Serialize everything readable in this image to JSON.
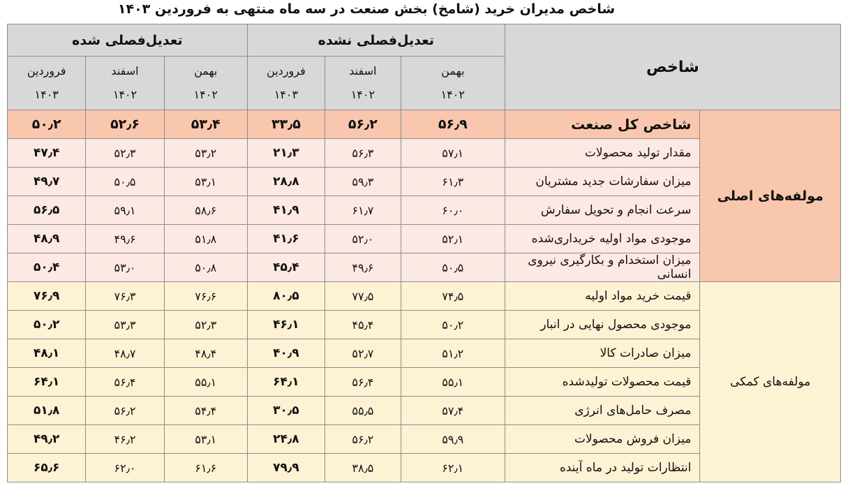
{
  "title": "شاخص مدیران خرید (شامخ) بخش صنعت در سه ماه منتهی به فروردین ۱۴۰۳",
  "header": {
    "indicator": "شاخص",
    "groups": [
      "تعدیل‌فصلی نشده",
      "تعدیل‌فصلی شده"
    ],
    "months": [
      {
        "name": "بهمن",
        "year": "۱۴۰۲"
      },
      {
        "name": "اسفند",
        "year": "۱۴۰۲"
      },
      {
        "name": "فروردین",
        "year": "۱۴۰۳"
      },
      {
        "name": "بهمن",
        "year": "۱۴۰۲"
      },
      {
        "name": "اسفند",
        "year": "۱۴۰۲"
      },
      {
        "name": "فروردین",
        "year": "۱۴۰۳"
      }
    ]
  },
  "categories": [
    "مولفه‌های اصلی",
    "مولفه‌های کمکی"
  ],
  "rows": [
    {
      "name": "شاخص  کل صنعت",
      "values": [
        "۵۶٫۹",
        "۵۶٫۲",
        "۳۳٫۵",
        "۵۳٫۴",
        "۵۲٫۶",
        "۵۰٫۲"
      ]
    },
    {
      "name": "مقدار تولید محصولات",
      "values": [
        "۵۷٫۱",
        "۵۶٫۳",
        "۲۱٫۳",
        "۵۳٫۲",
        "۵۲٫۳",
        "۴۷٫۴"
      ]
    },
    {
      "name": "میزان سفارشات جدید مشتریان",
      "values": [
        "۶۱٫۳",
        "۵۹٫۳",
        "۲۸٫۸",
        "۵۳٫۱",
        "۵۰٫۵",
        "۴۹٫۷"
      ]
    },
    {
      "name": "سرعت انجام و تحویل سفارش",
      "values": [
        "۶۰٫۰",
        "۶۱٫۷",
        "۴۱٫۹",
        "۵۸٫۶",
        "۵۹٫۱",
        "۵۶٫۵"
      ]
    },
    {
      "name": "موجودی مواد اولیه خریداری‌شده",
      "values": [
        "۵۲٫۱",
        "۵۲٫۰",
        "۴۱٫۶",
        "۵۱٫۸",
        "۴۹٫۶",
        "۴۸٫۹"
      ]
    },
    {
      "name": "میزان استخدام و بکارگیری نیروی انسانی",
      "values": [
        "۵۰٫۵",
        "۴۹٫۶",
        "۴۵٫۴",
        "۵۰٫۸",
        "۵۳٫۰",
        "۵۰٫۴"
      ]
    },
    {
      "name": "قیمت خرید مواد اولیه",
      "values": [
        "۷۴٫۵",
        "۷۷٫۵",
        "۸۰٫۵",
        "۷۶٫۶",
        "۷۶٫۳",
        "۷۶٫۹"
      ]
    },
    {
      "name": "موجودی محصول نهایی در انبار",
      "values": [
        "۵۰٫۲",
        "۴۵٫۴",
        "۴۶٫۱",
        "۵۲٫۳",
        "۵۳٫۳",
        "۵۰٫۲"
      ]
    },
    {
      "name": "میزان صادرات کالا",
      "values": [
        "۵۱٫۲",
        "۵۲٫۷",
        "۴۰٫۹",
        "۴۸٫۴",
        "۴۸٫۷",
        "۴۸٫۱"
      ]
    },
    {
      "name": "قیمت محصولات تولیدشده",
      "values": [
        "۵۵٫۱",
        "۵۶٫۴",
        "۶۴٫۱",
        "۵۵٫۱",
        "۵۶٫۴",
        "۶۴٫۱"
      ]
    },
    {
      "name": "مصرف حامل‌های انرژی",
      "values": [
        "۵۷٫۴",
        "۵۵٫۵",
        "۳۰٫۵",
        "۵۴٫۴",
        "۵۶٫۲",
        "۵۱٫۸"
      ]
    },
    {
      "name": "میزان فروش محصولات",
      "values": [
        "۵۹٫۹",
        "۵۶٫۲",
        "۲۴٫۸",
        "۵۳٫۱",
        "۴۶٫۲",
        "۴۹٫۲"
      ]
    },
    {
      "name": "انتظارات تولید در ماه آینده",
      "values": [
        "۶۲٫۱",
        "۳۸٫۵",
        "۷۹٫۹",
        "۶۱٫۶",
        "۶۲٫۰",
        "۶۵٫۶"
      ]
    }
  ]
}
